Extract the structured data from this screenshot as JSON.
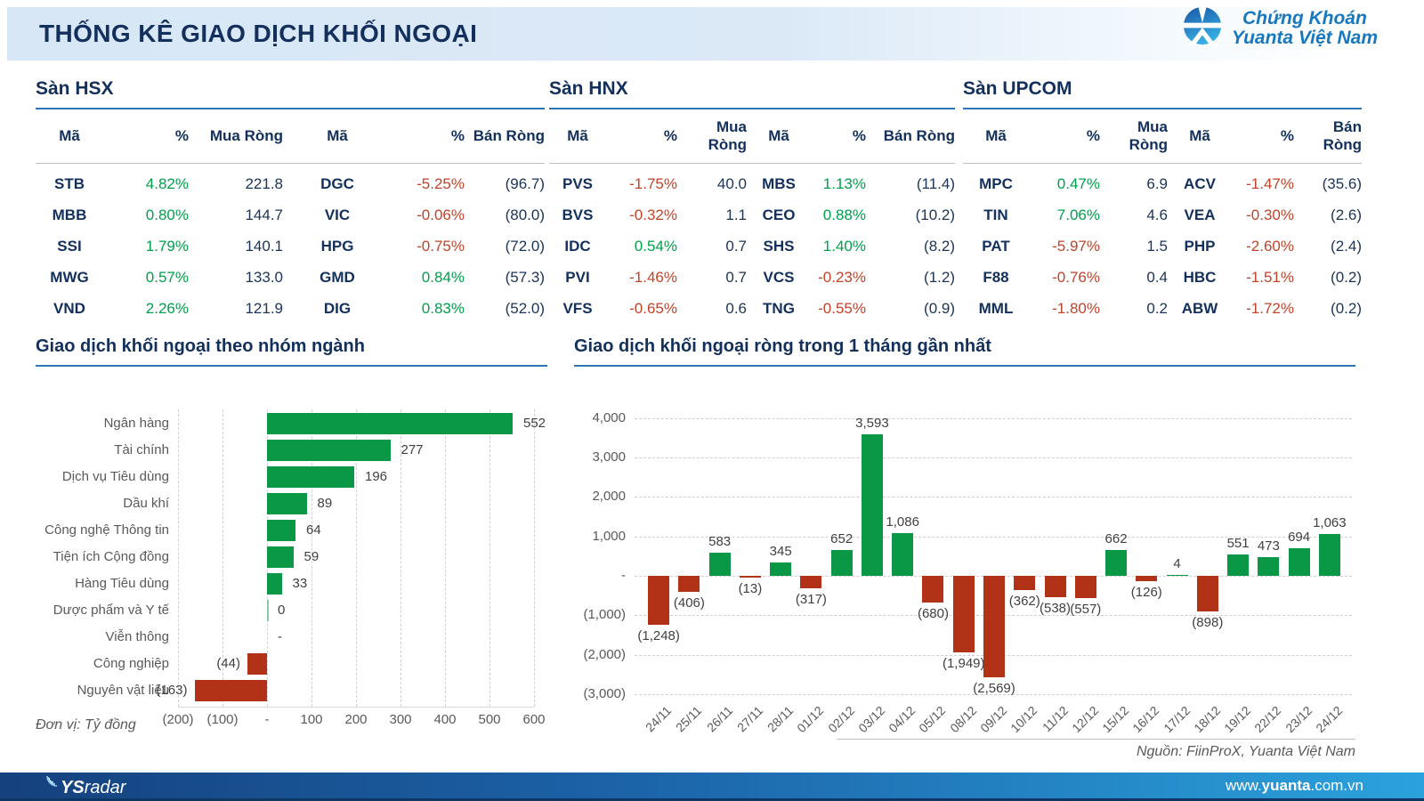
{
  "header": {
    "title": "THỐNG KÊ GIAO DỊCH KHỐI NGOẠI",
    "logo_line1": "Chứng Khoán",
    "logo_line2": "Yuanta Việt Nam"
  },
  "colors": {
    "accent_blue": "#2E75B6",
    "navy": "#13305C",
    "green_text": "#00A04C",
    "red_text": "#C0432A",
    "bar_green": "#0A9746",
    "bar_red": "#B23218",
    "bar_zero_green": "#8CCBA4",
    "gray_text": "#595959"
  },
  "tables": [
    {
      "title": "Sàn HSX",
      "headers": [
        "Mã",
        "%",
        "Mua Ròng",
        "Mã",
        "%",
        "Bán Ròng"
      ],
      "rows": [
        {
          "buy_ticker": "STB",
          "buy_pct": "4.82%",
          "buy_dir": "up",
          "buy_value": "221.8",
          "sell_ticker": "DGC",
          "sell_pct": "-5.25%",
          "sell_dir": "down",
          "sell_value": "(96.7)"
        },
        {
          "buy_ticker": "MBB",
          "buy_pct": "0.80%",
          "buy_dir": "up",
          "buy_value": "144.7",
          "sell_ticker": "VIC",
          "sell_pct": "-0.06%",
          "sell_dir": "down",
          "sell_value": "(80.0)"
        },
        {
          "buy_ticker": "SSI",
          "buy_pct": "1.79%",
          "buy_dir": "up",
          "buy_value": "140.1",
          "sell_ticker": "HPG",
          "sell_pct": "-0.75%",
          "sell_dir": "down",
          "sell_value": "(72.0)"
        },
        {
          "buy_ticker": "MWG",
          "buy_pct": "0.57%",
          "buy_dir": "up",
          "buy_value": "133.0",
          "sell_ticker": "GMD",
          "sell_pct": "0.84%",
          "sell_dir": "up",
          "sell_value": "(57.3)"
        },
        {
          "buy_ticker": "VND",
          "buy_pct": "2.26%",
          "buy_dir": "up",
          "buy_value": "121.9",
          "sell_ticker": "DIG",
          "sell_pct": "0.83%",
          "sell_dir": "up",
          "sell_value": "(52.0)"
        }
      ]
    },
    {
      "title": "Sàn HNX",
      "headers": [
        "Mã",
        "%",
        "Mua Ròng",
        "Mã",
        "%",
        "Bán Ròng"
      ],
      "rows": [
        {
          "buy_ticker": "PVS",
          "buy_pct": "-1.75%",
          "buy_dir": "down",
          "buy_value": "40.0",
          "sell_ticker": "MBS",
          "sell_pct": "1.13%",
          "sell_dir": "up",
          "sell_value": "(11.4)"
        },
        {
          "buy_ticker": "BVS",
          "buy_pct": "-0.32%",
          "buy_dir": "down",
          "buy_value": "1.1",
          "sell_ticker": "CEO",
          "sell_pct": "0.88%",
          "sell_dir": "up",
          "sell_value": "(10.2)"
        },
        {
          "buy_ticker": "IDC",
          "buy_pct": "0.54%",
          "buy_dir": "up",
          "buy_value": "0.7",
          "sell_ticker": "SHS",
          "sell_pct": "1.40%",
          "sell_dir": "up",
          "sell_value": "(8.2)"
        },
        {
          "buy_ticker": "PVI",
          "buy_pct": "-1.46%",
          "buy_dir": "down",
          "buy_value": "0.7",
          "sell_ticker": "VCS",
          "sell_pct": "-0.23%",
          "sell_dir": "down",
          "sell_value": "(1.2)"
        },
        {
          "buy_ticker": "VFS",
          "buy_pct": "-0.65%",
          "buy_dir": "down",
          "buy_value": "0.6",
          "sell_ticker": "TNG",
          "sell_pct": "-0.55%",
          "sell_dir": "down",
          "sell_value": "(0.9)"
        }
      ]
    },
    {
      "title": "Sàn UPCOM",
      "headers": [
        "Mã",
        "%",
        "Mua Ròng",
        "Mã",
        "%",
        "Bán Ròng"
      ],
      "rows": [
        {
          "buy_ticker": "MPC",
          "buy_pct": "0.47%",
          "buy_dir": "up",
          "buy_value": "6.9",
          "sell_ticker": "ACV",
          "sell_pct": "-1.47%",
          "sell_dir": "down",
          "sell_value": "(35.6)"
        },
        {
          "buy_ticker": "TIN",
          "buy_pct": "7.06%",
          "buy_dir": "up",
          "buy_value": "4.6",
          "sell_ticker": "VEA",
          "sell_pct": "-0.30%",
          "sell_dir": "down",
          "sell_value": "(2.6)"
        },
        {
          "buy_ticker": "PAT",
          "buy_pct": "-5.97%",
          "buy_dir": "down",
          "buy_value": "1.5",
          "sell_ticker": "PHP",
          "sell_pct": "-2.60%",
          "sell_dir": "down",
          "sell_value": "(2.4)"
        },
        {
          "buy_ticker": "F88",
          "buy_pct": "-0.76%",
          "buy_dir": "down",
          "buy_value": "0.4",
          "sell_ticker": "HBC",
          "sell_pct": "-1.51%",
          "sell_dir": "down",
          "sell_value": "(0.2)"
        },
        {
          "buy_ticker": "MML",
          "buy_pct": "-1.80%",
          "buy_dir": "down",
          "buy_value": "0.2",
          "sell_ticker": "ABW",
          "sell_pct": "-1.72%",
          "sell_dir": "down",
          "sell_value": "(0.2)"
        }
      ]
    }
  ],
  "chart_data": [
    {
      "type": "bar",
      "orientation": "horizontal",
      "title": "Giao dịch khối ngoại theo nhóm ngành",
      "categories": [
        "Ngân hàng",
        "Tài chính",
        "Dịch vụ Tiêu dùng",
        "Dầu khí",
        "Công nghệ Thông tin",
        "Tiện ích Cộng đồng",
        "Hàng Tiêu dùng",
        "Dược phẩm và Y tế",
        "Viễn thông",
        "Công nghiệp",
        "Nguyên vật liệu"
      ],
      "values": [
        552,
        277,
        196,
        89,
        64,
        59,
        33,
        0,
        null,
        -44,
        -163
      ],
      "labels": [
        "552",
        "277",
        "196",
        "89",
        "64",
        "59",
        "33",
        "0",
        "-",
        "(44)",
        "(163)"
      ],
      "xlim": [
        -200,
        600
      ],
      "x_tick_values": [
        -200,
        -100,
        0,
        100,
        200,
        300,
        400,
        500,
        600
      ],
      "x_ticks": [
        "(200)",
        "(100)",
        "-",
        "100",
        "200",
        "300",
        "400",
        "500",
        "600"
      ],
      "grid": true,
      "unit_note": "Đơn vị: Tỷ đồng"
    },
    {
      "type": "bar",
      "orientation": "vertical",
      "title": "Giao dịch khối ngoại ròng trong 1 tháng gần nhất",
      "categories": [
        "24/11",
        "25/11",
        "26/11",
        "27/11",
        "28/11",
        "01/12",
        "02/12",
        "03/12",
        "04/12",
        "05/12",
        "08/12",
        "09/12",
        "10/12",
        "11/12",
        "12/12",
        "15/12",
        "16/12",
        "17/12",
        "18/12",
        "19/12",
        "22/12",
        "23/12",
        "24/12"
      ],
      "values": [
        -1248,
        -406,
        583,
        -13,
        345,
        -317,
        652,
        3593,
        1086,
        -680,
        -1949,
        -2569,
        -362,
        -538,
        -557,
        662,
        -126,
        4,
        -898,
        551,
        473,
        694,
        1063
      ],
      "labels": [
        "(1,248)",
        "(406)",
        "583",
        "(13)",
        "345",
        "(317)",
        "652",
        "3,593",
        "1,086",
        "(680)",
        "(1,949)",
        "(2,569)",
        "(362)",
        "(538)",
        "(557)",
        "662",
        "(126)",
        "4",
        "(898)",
        "551",
        "473",
        "694",
        "1,063"
      ],
      "ylim": [
        -3000,
        4000
      ],
      "y_tick_values": [
        4000,
        3000,
        2000,
        1000,
        0,
        -1000,
        -2000,
        -3000
      ],
      "y_ticks": [
        "4,000",
        "3,000",
        "2,000",
        "1,000",
        "-",
        "(1,000)",
        "(2,000)",
        "(3,000)"
      ],
      "grid": true,
      "source_note": "Nguồn: FiinProX, Yuanta Việt Nam"
    }
  ],
  "footer": {
    "brand_bold": "YS",
    "brand_rest": "radar",
    "url_prefix": "www.",
    "url_bold": "yuanta",
    "url_suffix": ".com.vn"
  }
}
